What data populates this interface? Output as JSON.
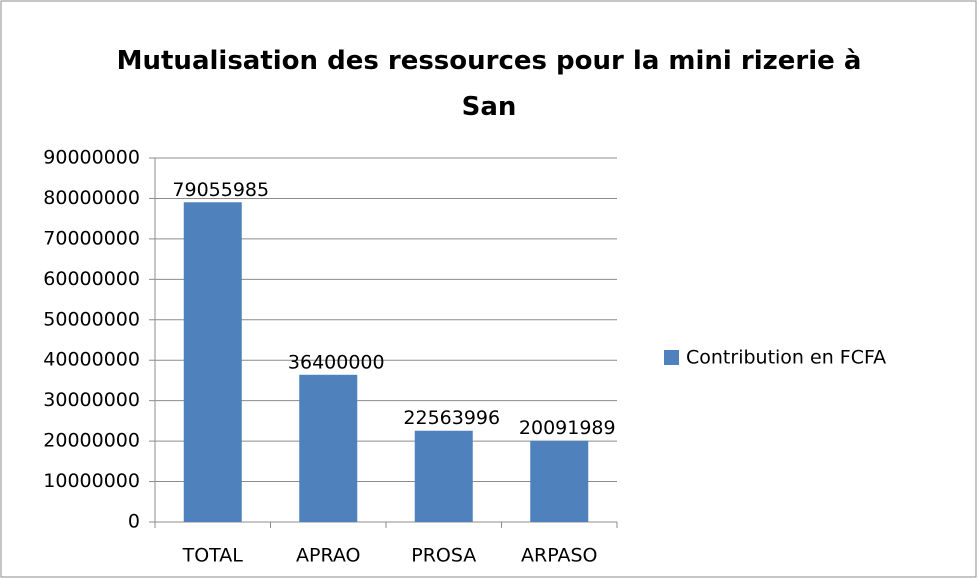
{
  "chart_data": {
    "type": "bar",
    "title": "Mutualisation des ressources pour la mini rizerie à San",
    "categories": [
      "TOTAL",
      "APRAO",
      "PROSA",
      "ARPASO"
    ],
    "series": [
      {
        "name": "Contribution en FCFA",
        "color": "#4f81bd",
        "values": [
          79055985,
          36400000,
          22563996,
          20091989
        ]
      }
    ],
    "ylim": [
      0,
      90000000
    ],
    "yticks": [
      0,
      10000000,
      20000000,
      30000000,
      40000000,
      50000000,
      60000000,
      70000000,
      80000000,
      90000000
    ],
    "grid": true,
    "legend": "right",
    "data_labels": true
  }
}
